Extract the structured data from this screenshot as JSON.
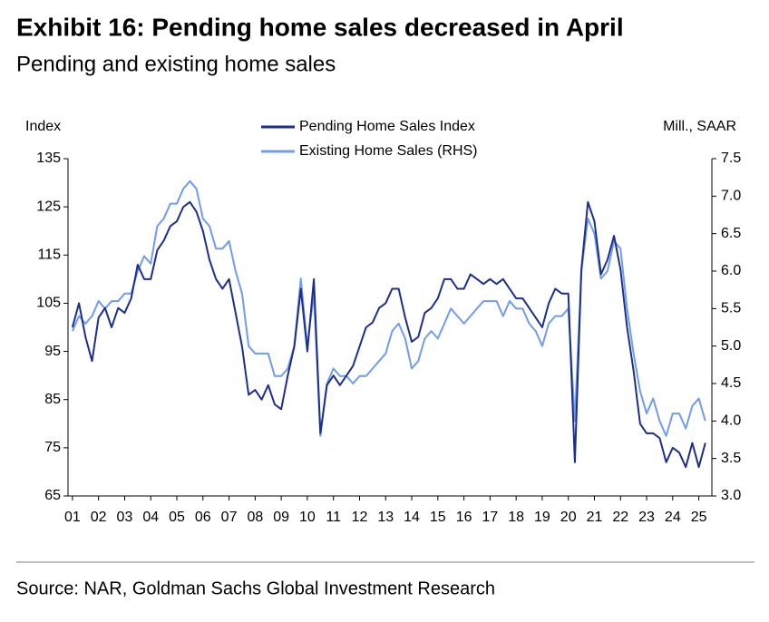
{
  "chart_data": {
    "type": "line",
    "title": "Exhibit 16: Pending home sales decreased in April",
    "subtitle": "Pending and existing home sales",
    "y_label": "Index",
    "y2_label": "Mill., SAAR",
    "source": "Source: NAR, Goldman Sachs Global Investment Research",
    "x": [
      2001,
      2001.25,
      2001.5,
      2001.75,
      2002,
      2002.25,
      2002.5,
      2002.75,
      2003,
      2003.25,
      2003.5,
      2003.75,
      2004,
      2004.25,
      2004.5,
      2004.75,
      2005,
      2005.25,
      2005.5,
      2005.75,
      2006,
      2006.25,
      2006.5,
      2006.75,
      2007,
      2007.25,
      2007.5,
      2007.75,
      2008,
      2008.25,
      2008.5,
      2008.75,
      2009,
      2009.25,
      2009.5,
      2009.75,
      2010,
      2010.25,
      2010.5,
      2010.75,
      2011,
      2011.25,
      2011.5,
      2011.75,
      2012,
      2012.25,
      2012.5,
      2012.75,
      2013,
      2013.25,
      2013.5,
      2013.75,
      2014,
      2014.25,
      2014.5,
      2014.75,
      2015,
      2015.25,
      2015.5,
      2015.75,
      2016,
      2016.25,
      2016.5,
      2016.75,
      2017,
      2017.25,
      2017.5,
      2017.75,
      2018,
      2018.25,
      2018.5,
      2018.75,
      2019,
      2019.25,
      2019.5,
      2019.75,
      2020,
      2020.25,
      2020.5,
      2020.75,
      2021,
      2021.25,
      2021.5,
      2021.75,
      2022,
      2022.25,
      2022.5,
      2022.75,
      2023,
      2023.25,
      2023.5,
      2023.75,
      2024,
      2024.25,
      2024.5,
      2024.75,
      2025,
      2025.25
    ],
    "series": [
      {
        "name": "Pending Home Sales Index",
        "color": "#1c2f8c",
        "axis": "y",
        "values": [
          100,
          105,
          98,
          93,
          102,
          104,
          100,
          104,
          103,
          106,
          113,
          110,
          110,
          116,
          118,
          121,
          122,
          125,
          126,
          124,
          120,
          114,
          110,
          108,
          110,
          103,
          96,
          86,
          87,
          85,
          88,
          84,
          83,
          90,
          96,
          108,
          95,
          110,
          78,
          88,
          90,
          88,
          90,
          92,
          96,
          100,
          101,
          104,
          105,
          108,
          108,
          102,
          97,
          98,
          103,
          104,
          106,
          110,
          110,
          108,
          108,
          111,
          110,
          109,
          110,
          109,
          110,
          108,
          106,
          106,
          104,
          102,
          100,
          105,
          108,
          107,
          107,
          72,
          112,
          126,
          122,
          111,
          114,
          119,
          112,
          100,
          91,
          80,
          78,
          78,
          77,
          72,
          75,
          74,
          71,
          76,
          71,
          76
        ]
      },
      {
        "name": "Existing Home Sales (RHS)",
        "color": "#6f9cf0",
        "axis": "y2",
        "values": [
          5.2,
          5.4,
          5.3,
          5.4,
          5.6,
          5.5,
          5.6,
          5.6,
          5.7,
          5.7,
          6.0,
          6.2,
          6.1,
          6.6,
          6.7,
          6.9,
          6.9,
          7.1,
          7.2,
          7.1,
          6.7,
          6.6,
          6.3,
          6.3,
          6.4,
          6.0,
          5.7,
          5.0,
          4.9,
          4.9,
          4.9,
          4.6,
          4.6,
          4.7,
          5.0,
          5.9,
          5.0,
          5.7,
          3.8,
          4.5,
          4.7,
          4.6,
          4.6,
          4.5,
          4.6,
          4.6,
          4.7,
          4.8,
          4.9,
          5.2,
          5.3,
          5.1,
          4.7,
          4.8,
          5.1,
          5.2,
          5.1,
          5.3,
          5.5,
          5.4,
          5.3,
          5.4,
          5.5,
          5.6,
          5.6,
          5.6,
          5.4,
          5.6,
          5.5,
          5.5,
          5.3,
          5.2,
          5.0,
          5.3,
          5.4,
          5.4,
          5.5,
          4.0,
          6.0,
          6.7,
          6.5,
          5.9,
          6.0,
          6.4,
          6.3,
          5.5,
          4.9,
          4.4,
          4.1,
          4.3,
          4.0,
          3.8,
          4.1,
          4.1,
          3.9,
          4.2,
          4.3,
          4.0
        ]
      }
    ],
    "xlim": [
      2000.83,
      2025.5
    ],
    "xticks": [
      {
        "value": 2001,
        "label": "01"
      },
      {
        "value": 2002,
        "label": "02"
      },
      {
        "value": 2003,
        "label": "03"
      },
      {
        "value": 2004,
        "label": "04"
      },
      {
        "value": 2005,
        "label": "05"
      },
      {
        "value": 2006,
        "label": "06"
      },
      {
        "value": 2007,
        "label": "07"
      },
      {
        "value": 2008,
        "label": "08"
      },
      {
        "value": 2009,
        "label": "09"
      },
      {
        "value": 2010,
        "label": "10"
      },
      {
        "value": 2011,
        "label": "11"
      },
      {
        "value": 2012,
        "label": "12"
      },
      {
        "value": 2013,
        "label": "13"
      },
      {
        "value": 2014,
        "label": "14"
      },
      {
        "value": 2015,
        "label": "15"
      },
      {
        "value": 2016,
        "label": "16"
      },
      {
        "value": 2017,
        "label": "17"
      },
      {
        "value": 2018,
        "label": "18"
      },
      {
        "value": 2019,
        "label": "19"
      },
      {
        "value": 2020,
        "label": "20"
      },
      {
        "value": 2021,
        "label": "21"
      },
      {
        "value": 2022,
        "label": "22"
      },
      {
        "value": 2023,
        "label": "23"
      },
      {
        "value": 2024,
        "label": "24"
      },
      {
        "value": 2025,
        "label": "25"
      }
    ],
    "ylim": [
      65,
      135
    ],
    "yticks": [
      65,
      75,
      85,
      95,
      105,
      115,
      125,
      135
    ],
    "y2lim": [
      3,
      7.5
    ],
    "y2ticks": [
      {
        "value": 3,
        "label": "3.0"
      },
      3.5,
      {
        "value": 4,
        "label": "4.0"
      },
      4.5,
      {
        "value": 5,
        "label": "5.0"
      },
      5.5,
      {
        "value": 6,
        "label": "6.0"
      },
      6.5,
      {
        "value": 7,
        "label": "7.0"
      },
      7.5
    ],
    "grid": false
  }
}
